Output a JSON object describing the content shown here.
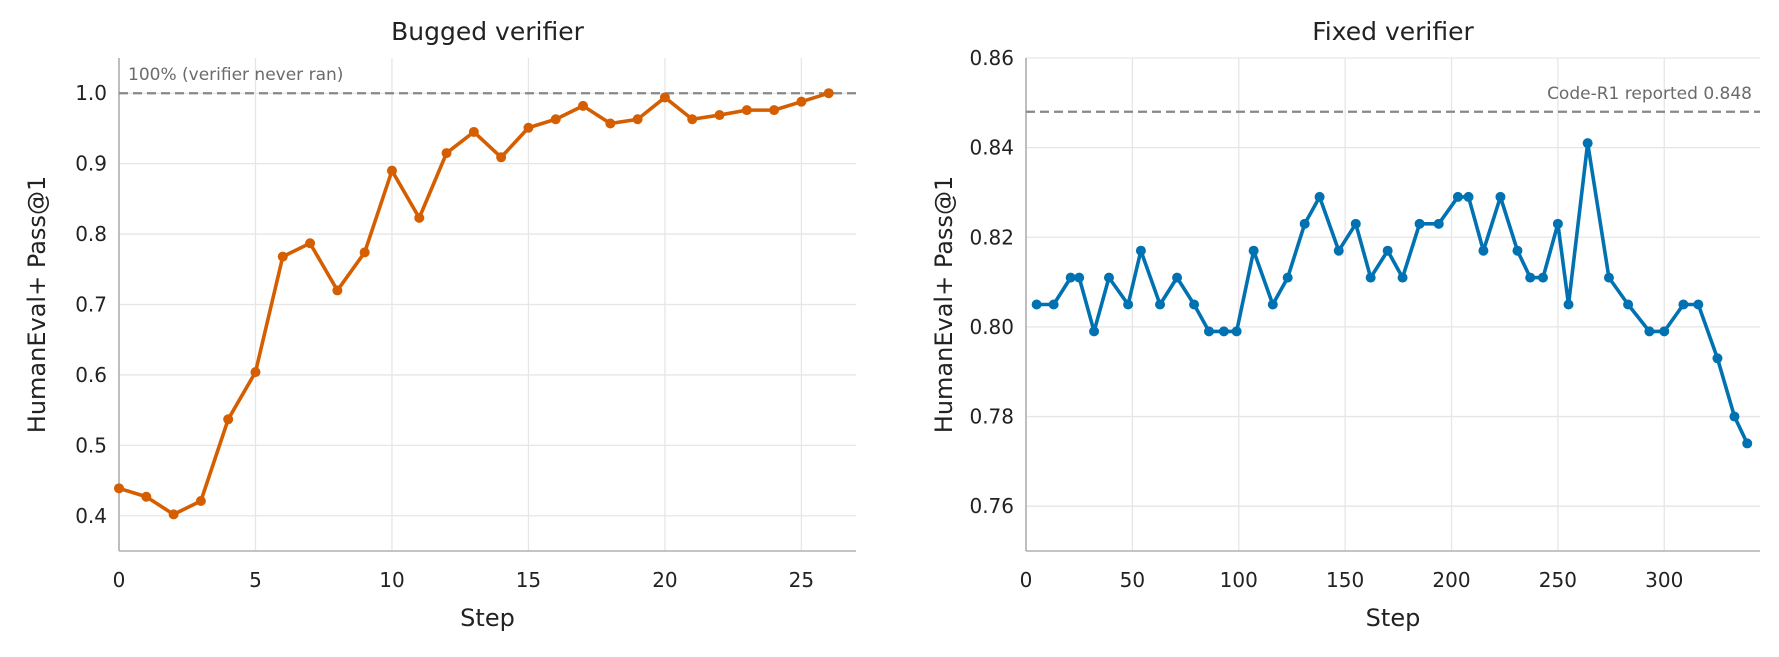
{
  "chart_data": [
    {
      "type": "line",
      "title": "Bugged verifier",
      "xlabel": "Step",
      "ylabel": "HumanEval+ Pass@1",
      "xlim": [
        0,
        27
      ],
      "ylim": [
        0.35,
        1.05
      ],
      "xticks": [
        0,
        5,
        10,
        15,
        20,
        25
      ],
      "xtick_labels": [
        "0",
        "5",
        "10",
        "15",
        "20",
        "25"
      ],
      "yticks": [
        0.4,
        0.5,
        0.6,
        0.7,
        0.8,
        0.9,
        1.0
      ],
      "ytick_labels": [
        "0.4",
        "0.5",
        "0.6",
        "0.7",
        "0.8",
        "0.9",
        "1.0"
      ],
      "grid": true,
      "color": "#d55e00",
      "reference_line": {
        "y": 1.0,
        "label": "100% (verifier never ran)",
        "label_position": "top-left"
      },
      "series": [
        {
          "x": [
            0,
            1,
            2,
            3,
            4,
            5,
            6,
            7,
            8,
            9,
            10,
            11,
            12,
            13,
            14,
            15,
            16,
            17,
            18,
            19,
            20,
            21,
            22,
            23,
            24,
            25,
            26
          ],
          "y": [
            0.439,
            0.427,
            0.402,
            0.421,
            0.537,
            0.604,
            0.768,
            0.787,
            0.72,
            0.774,
            0.89,
            0.823,
            0.915,
            0.945,
            0.909,
            0.951,
            0.963,
            0.982,
            0.957,
            0.963,
            0.994,
            0.963,
            0.969,
            0.976,
            0.976,
            0.988,
            1.0
          ]
        }
      ]
    },
    {
      "type": "line",
      "title": "Fixed verifier",
      "xlabel": "Step",
      "ylabel": "HumanEval+ Pass@1",
      "xlim": [
        0,
        345
      ],
      "ylim": [
        0.75,
        0.86
      ],
      "xticks": [
        0,
        50,
        100,
        150,
        200,
        250,
        300
      ],
      "xtick_labels": [
        "0",
        "50",
        "100",
        "150",
        "200",
        "250",
        "300"
      ],
      "yticks": [
        0.76,
        0.78,
        0.8,
        0.82,
        0.84,
        0.86
      ],
      "ytick_labels": [
        "0.76",
        "0.78",
        "0.80",
        "0.82",
        "0.84",
        "0.86"
      ],
      "grid": true,
      "color": "#0072b2",
      "reference_line": {
        "y": 0.848,
        "label": "Code-R1 reported 0.848",
        "label_position": "top-right"
      },
      "series": [
        {
          "x": [
            5,
            13,
            21,
            25,
            32,
            39,
            48,
            54,
            63,
            71,
            79,
            86,
            93,
            99,
            107,
            116,
            123,
            131,
            138,
            147,
            155,
            162,
            170,
            177,
            185,
            194,
            203,
            208,
            215,
            223,
            231,
            237,
            243,
            250,
            255,
            264,
            274,
            283,
            293,
            300,
            309,
            316,
            325,
            333,
            339
          ],
          "y": [
            0.805,
            0.805,
            0.811,
            0.811,
            0.799,
            0.811,
            0.805,
            0.817,
            0.805,
            0.811,
            0.805,
            0.799,
            0.799,
            0.799,
            0.817,
            0.805,
            0.811,
            0.823,
            0.829,
            0.817,
            0.823,
            0.811,
            0.817,
            0.811,
            0.823,
            0.823,
            0.829,
            0.829,
            0.817,
            0.829,
            0.817,
            0.811,
            0.811,
            0.823,
            0.805,
            0.841,
            0.811,
            0.805,
            0.799,
            0.799,
            0.805,
            0.805,
            0.793,
            0.78,
            0.774
          ]
        }
      ]
    }
  ]
}
